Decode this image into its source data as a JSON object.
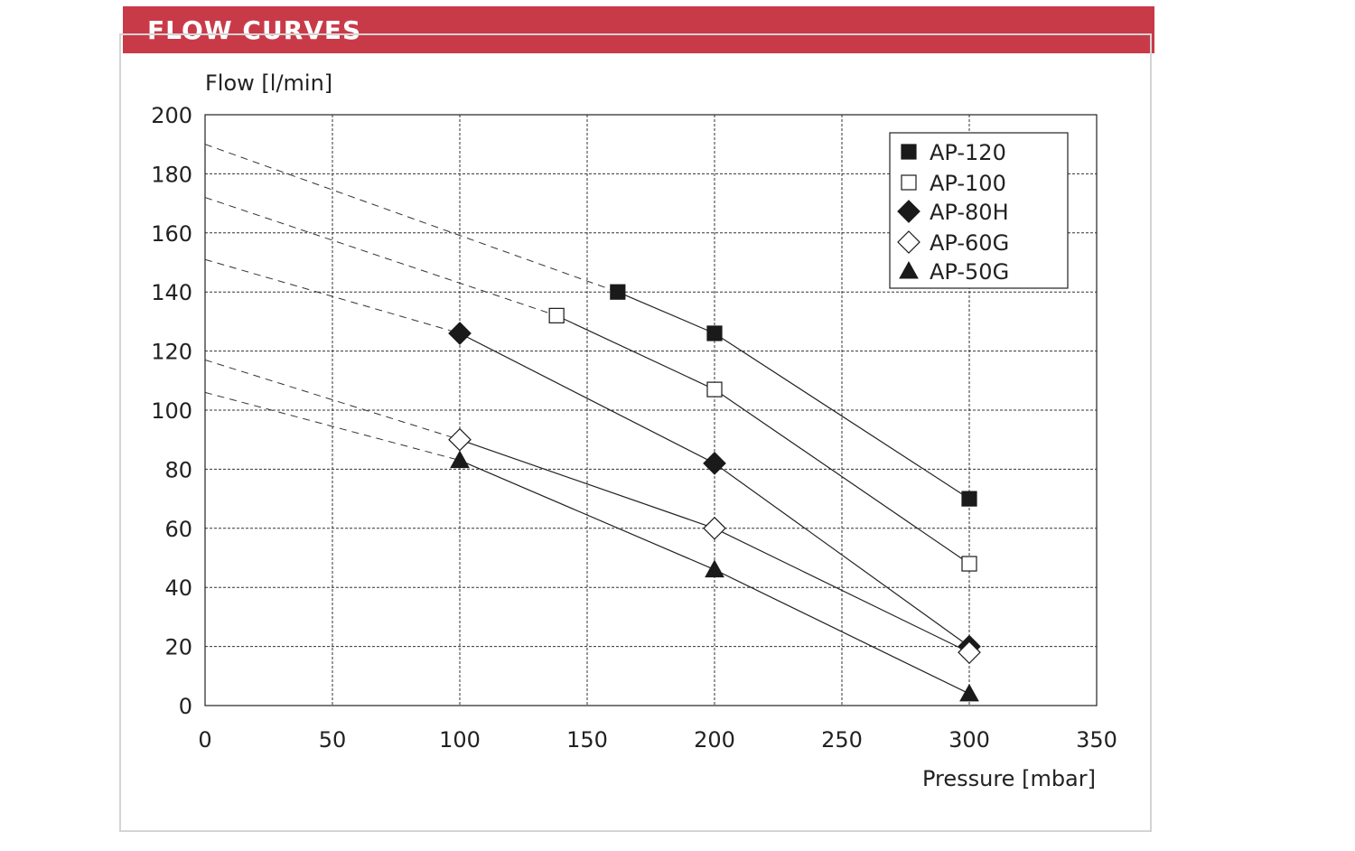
{
  "header": {
    "title": "FLOW CURVES",
    "color": "#c93a48"
  },
  "chart_data": {
    "type": "line",
    "title": "",
    "xlabel": "Pressure [mbar]",
    "ylabel": "Flow [l/min]",
    "xlim": [
      0,
      350
    ],
    "ylim": [
      0,
      200
    ],
    "xticks": [
      0,
      50,
      100,
      150,
      200,
      250,
      300,
      350
    ],
    "yticks": [
      0,
      20,
      40,
      60,
      80,
      100,
      120,
      140,
      160,
      180,
      200
    ],
    "grid": true,
    "legend_position": "top-right",
    "series": [
      {
        "name": "AP-120",
        "marker": "square-filled",
        "x": [
          162,
          200,
          300
        ],
        "y": [
          140,
          126,
          70
        ],
        "extrapolated": {
          "x": [
            0,
            162
          ],
          "y": [
            190,
            140
          ]
        }
      },
      {
        "name": "AP-100",
        "marker": "square-open",
        "x": [
          138,
          200,
          300
        ],
        "y": [
          132,
          107,
          48
        ],
        "extrapolated": {
          "x": [
            0,
            138
          ],
          "y": [
            172,
            132
          ]
        }
      },
      {
        "name": "AP-80H",
        "marker": "diamond-filled",
        "x": [
          100,
          200,
          300
        ],
        "y": [
          126,
          82,
          20
        ],
        "extrapolated": {
          "x": [
            0,
            100
          ],
          "y": [
            151,
            126
          ]
        }
      },
      {
        "name": "AP-60G",
        "marker": "diamond-open",
        "x": [
          100,
          200,
          300
        ],
        "y": [
          90,
          60,
          18
        ],
        "extrapolated": {
          "x": [
            0,
            100
          ],
          "y": [
            117,
            90
          ]
        }
      },
      {
        "name": "AP-50G",
        "marker": "triangle-filled",
        "x": [
          100,
          200,
          300
        ],
        "y": [
          83,
          46,
          4
        ],
        "extrapolated": {
          "x": [
            0,
            100
          ],
          "y": [
            106,
            83
          ]
        }
      }
    ]
  }
}
